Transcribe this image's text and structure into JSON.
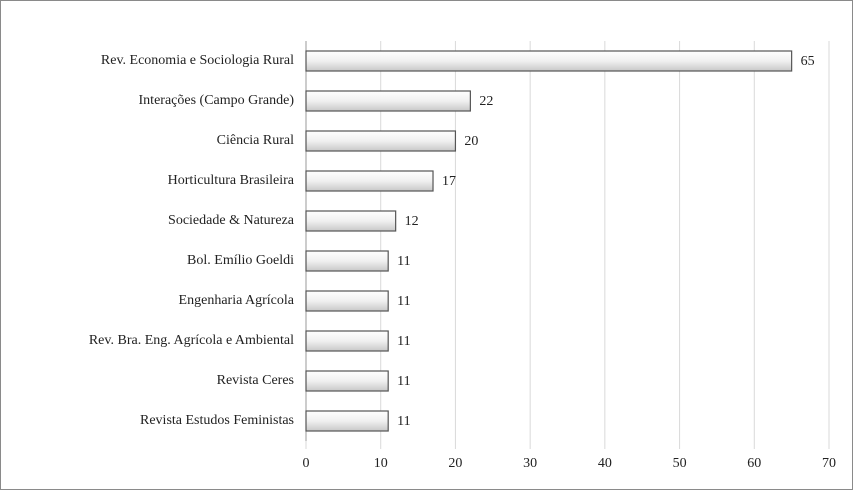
{
  "chart_data": {
    "type": "bar",
    "orientation": "horizontal",
    "categories": [
      "Rev. Economia e Sociologia Rural",
      "Interações (Campo Grande)",
      "Ciência Rural",
      "Horticultura Brasileira",
      "Sociedade & Natureza",
      "Bol. Emílio Goeldi",
      "Engenharia Agrícola",
      "Rev. Bra. Eng. Agrícola e Ambiental",
      "Revista Ceres",
      "Revista Estudos Feministas"
    ],
    "values": [
      65,
      22,
      20,
      17,
      12,
      11,
      11,
      11,
      11,
      11
    ],
    "color": "#e6e6e6",
    "xlim": [
      0,
      70
    ],
    "xticks": [
      0,
      10,
      20,
      30,
      40,
      50,
      60,
      70
    ],
    "grid": true
  }
}
